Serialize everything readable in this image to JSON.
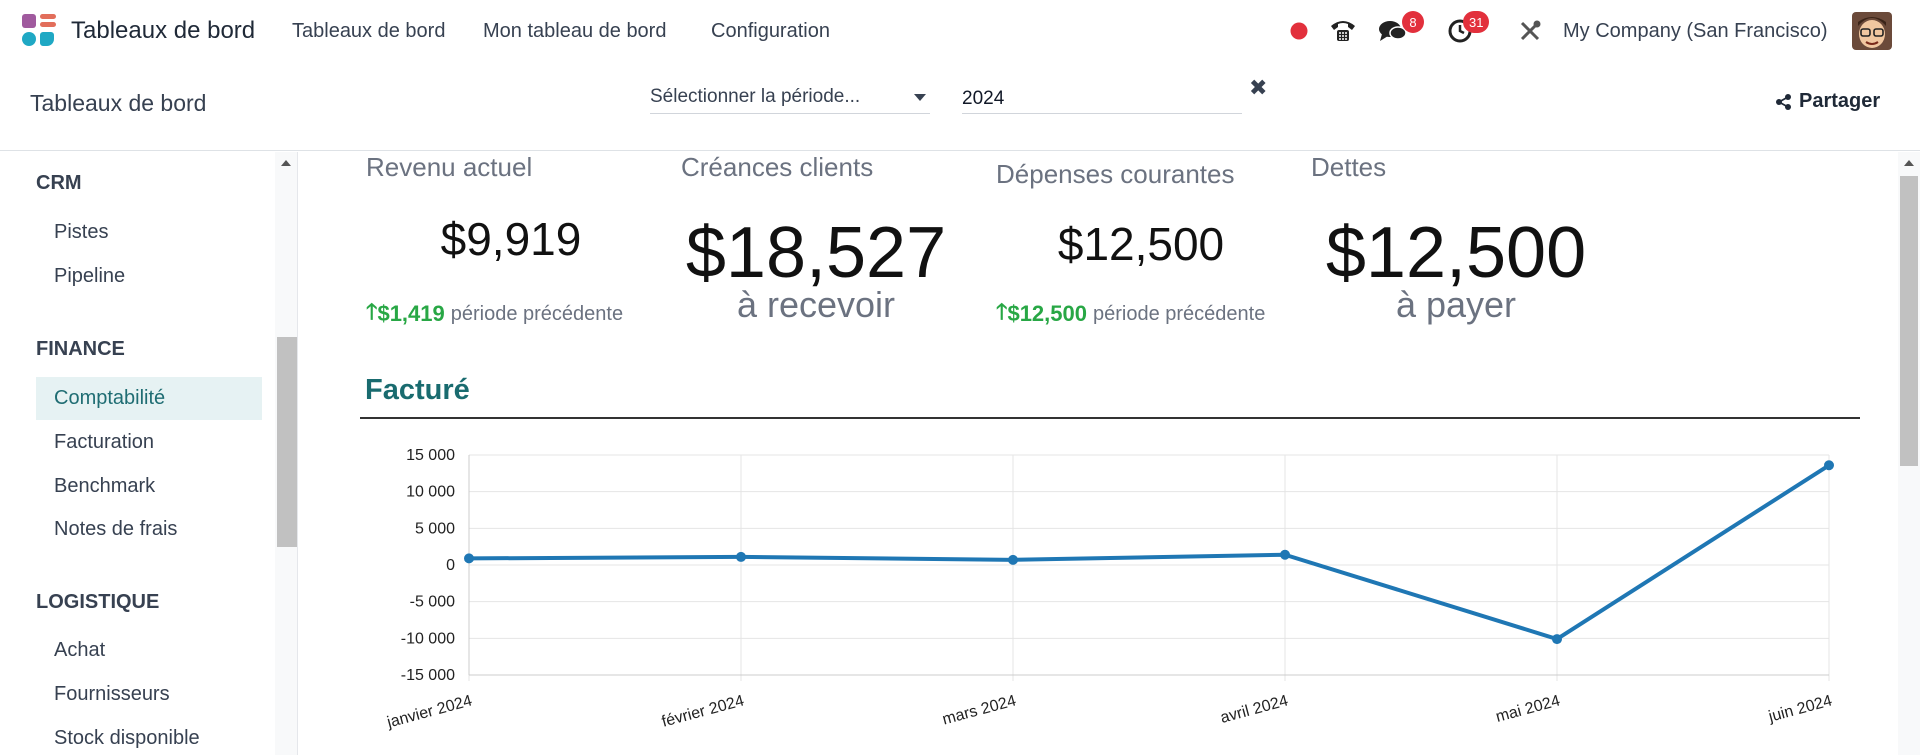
{
  "topbar": {
    "app_name": "Tableaux de bord",
    "menu": [
      "Tableaux de bord",
      "Mon tableau de bord",
      "Configuration"
    ],
    "discuss_badge": "8",
    "activity_badge": "31",
    "company": "My Company (San Francisco)",
    "status_color": "#e2303c"
  },
  "control": {
    "breadcrumb": "Tableaux de bord",
    "period_select": "Sélectionner la période...",
    "year_value": "2024",
    "share_label": "Partager"
  },
  "sidebar": {
    "sections": [
      {
        "title": "CRM",
        "items": [
          "Pistes",
          "Pipeline"
        ]
      },
      {
        "title": "FINANCE",
        "items": [
          "Comptabilité",
          "Facturation",
          "Benchmark",
          "Notes de frais"
        ]
      },
      {
        "title": "LOGISTIQUE",
        "items": [
          "Achat",
          "Fournisseurs",
          "Stock disponible"
        ]
      }
    ],
    "active_item": "Comptabilité"
  },
  "kpis": [
    {
      "title": "Revenu actuel",
      "value": "$9,919",
      "trend_value": "$1,419",
      "trend_label": "période précédente"
    },
    {
      "title": "Créances clients",
      "value": "$18,527",
      "sub": "à recevoir"
    },
    {
      "title": "Dépenses courantes",
      "value": "$12,500",
      "trend_value": "$12,500",
      "trend_label": "période précédente"
    },
    {
      "title": "Dettes",
      "value": "$12,500",
      "sub": "à payer"
    }
  ],
  "section_title": "Facturé",
  "chart_data": {
    "type": "line",
    "categories": [
      "janvier 2024",
      "février 2024",
      "mars 2024",
      "avril 2024",
      "mai 2024",
      "juin 2024"
    ],
    "series": [
      {
        "values": [
          900,
          1100,
          700,
          1400,
          -10100,
          13600
        ],
        "color": "#1f77b4"
      }
    ],
    "yticks": [
      "15 000",
      "10 000",
      "5 000",
      "0",
      "-5 000",
      "-10 000",
      "-15 000"
    ],
    "ylim": [
      -15000,
      15000
    ],
    "grid": true
  }
}
